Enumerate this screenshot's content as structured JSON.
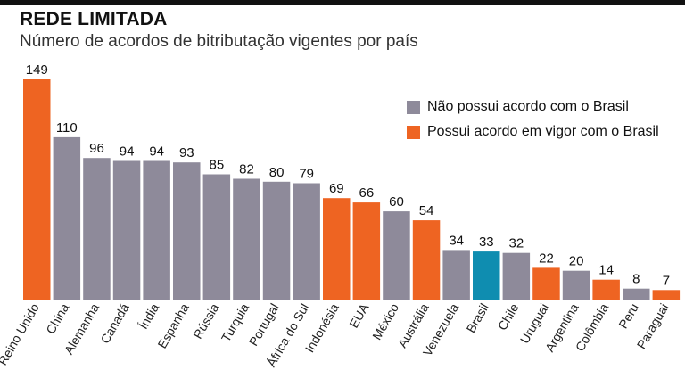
{
  "header": {
    "title": "REDE LIMITADA",
    "subtitle": "Número de acordos de bitributação vigentes por país"
  },
  "colors": {
    "no_agreement": "#8e8a9a",
    "agreement": "#ee6422",
    "brazil": "#0f8db0"
  },
  "legend": {
    "no_agreement_label": "Não possui acordo com o Brasil",
    "agreement_label": "Possui acordo em vigor com o Brasil"
  },
  "chart_data": {
    "type": "bar",
    "title": "REDE LIMITADA",
    "subtitle": "Número de acordos de bitributação vigentes por país",
    "xlabel": "",
    "ylabel": "",
    "ylim": [
      0,
      149
    ],
    "grid": false,
    "legend_position": "top-right",
    "categories": [
      "Reino Unido",
      "China",
      "Alemanha",
      "Canadá",
      "Índia",
      "Espanha",
      "Rússia",
      "Turquia",
      "Portugal",
      "África do Sul",
      "Indonésia",
      "EUA",
      "México",
      "Austrália",
      "Venezuela",
      "Brasil",
      "Chile",
      "Uruguai",
      "Argentina",
      "Colômbia",
      "Peru",
      "Paraguai"
    ],
    "values": [
      149,
      110,
      96,
      94,
      94,
      93,
      85,
      82,
      80,
      79,
      69,
      66,
      60,
      54,
      34,
      33,
      32,
      22,
      20,
      14,
      8,
      7
    ],
    "status": [
      "agreement",
      "no_agreement",
      "no_agreement",
      "no_agreement",
      "no_agreement",
      "no_agreement",
      "no_agreement",
      "no_agreement",
      "no_agreement",
      "no_agreement",
      "agreement",
      "agreement",
      "no_agreement",
      "agreement",
      "no_agreement",
      "brazil",
      "no_agreement",
      "agreement",
      "no_agreement",
      "agreement",
      "no_agreement",
      "agreement"
    ]
  }
}
